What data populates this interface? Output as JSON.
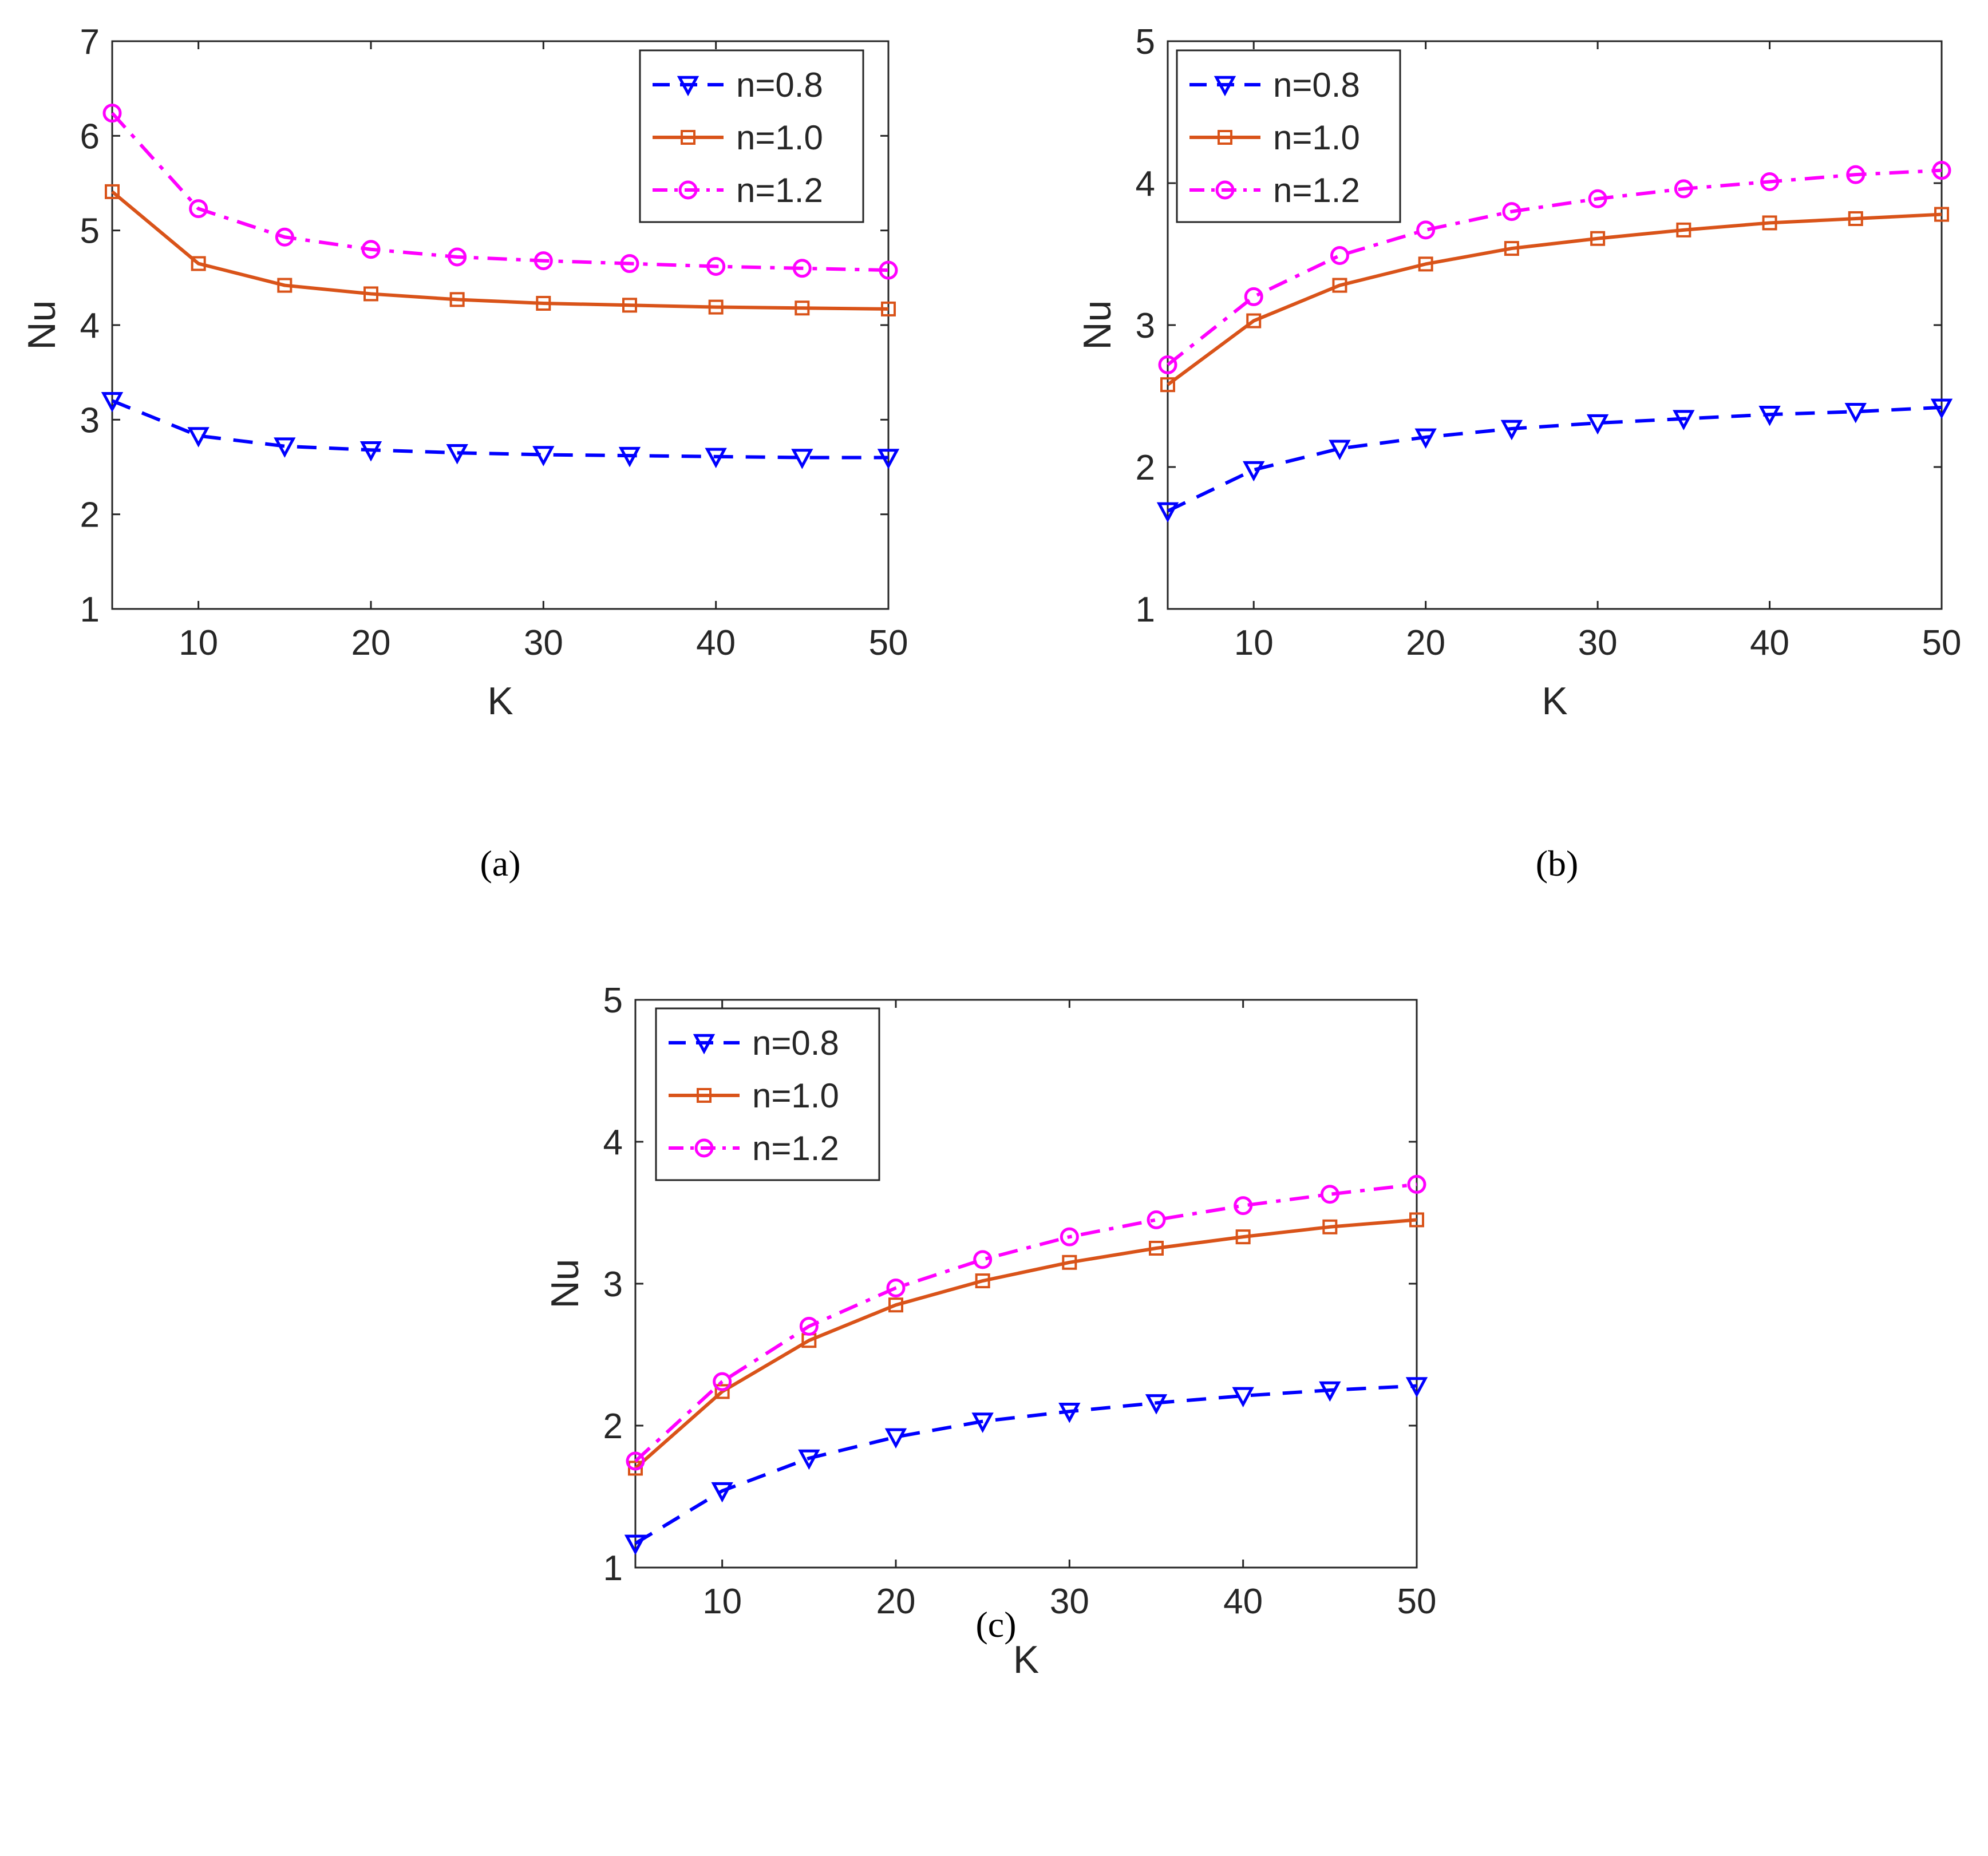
{
  "chart_data": [
    {
      "type": "line",
      "panel": "a",
      "caption": "(a)",
      "xlabel": "K",
      "ylabel": "Nu",
      "xlim": [
        5,
        50
      ],
      "ylim": [
        1,
        7
      ],
      "xticks": [
        10,
        20,
        30,
        40,
        50
      ],
      "yticks": [
        1,
        2,
        3,
        4,
        5,
        6,
        7
      ],
      "legend_position": "top-right",
      "x": [
        5,
        10,
        15,
        20,
        25,
        30,
        35,
        40,
        45,
        50
      ],
      "series": [
        {
          "name": "n=0.8",
          "color": "#0000FF",
          "style": "dashed",
          "marker": "triangle-down",
          "values": [
            3.2,
            2.83,
            2.72,
            2.68,
            2.65,
            2.63,
            2.62,
            2.61,
            2.6,
            2.6
          ]
        },
        {
          "name": "n=1.0",
          "color": "#D95319",
          "style": "solid",
          "marker": "square",
          "values": [
            5.41,
            4.65,
            4.42,
            4.33,
            4.27,
            4.23,
            4.21,
            4.19,
            4.18,
            4.17
          ]
        },
        {
          "name": "n=1.2",
          "color": "#FF00FF",
          "style": "dashdot",
          "marker": "circle",
          "values": [
            6.24,
            5.23,
            4.93,
            4.8,
            4.72,
            4.68,
            4.65,
            4.62,
            4.6,
            4.58
          ]
        }
      ]
    },
    {
      "type": "line",
      "panel": "b",
      "caption": "(b)",
      "xlabel": "K",
      "ylabel": "Nu",
      "xlim": [
        5,
        50
      ],
      "ylim": [
        1,
        5
      ],
      "xticks": [
        10,
        20,
        30,
        40,
        50
      ],
      "yticks": [
        1,
        2,
        3,
        4,
        5
      ],
      "legend_position": "top-left",
      "x": [
        5,
        10,
        15,
        20,
        25,
        30,
        35,
        40,
        45,
        50
      ],
      "series": [
        {
          "name": "n=0.8",
          "color": "#0000FF",
          "style": "dashed",
          "marker": "triangle-down",
          "values": [
            1.69,
            1.98,
            2.13,
            2.21,
            2.27,
            2.31,
            2.34,
            2.37,
            2.39,
            2.42
          ]
        },
        {
          "name": "n=1.0",
          "color": "#D95319",
          "style": "solid",
          "marker": "square",
          "values": [
            2.58,
            3.03,
            3.28,
            3.43,
            3.54,
            3.61,
            3.67,
            3.72,
            3.75,
            3.78
          ]
        },
        {
          "name": "n=1.2",
          "color": "#FF00FF",
          "style": "dashdot",
          "marker": "circle",
          "values": [
            2.72,
            3.2,
            3.49,
            3.67,
            3.8,
            3.89,
            3.96,
            4.01,
            4.06,
            4.09
          ]
        }
      ]
    },
    {
      "type": "line",
      "panel": "c",
      "caption": "(c)",
      "xlabel": "K",
      "ylabel": "Nu",
      "xlim": [
        5,
        50
      ],
      "ylim": [
        1,
        5
      ],
      "xticks": [
        10,
        20,
        30,
        40,
        50
      ],
      "yticks": [
        1,
        2,
        3,
        4,
        5
      ],
      "legend_position": "top-left",
      "x": [
        5,
        10,
        15,
        20,
        25,
        30,
        35,
        40,
        45,
        50
      ],
      "series": [
        {
          "name": "n=0.8",
          "color": "#0000FF",
          "style": "dashed",
          "marker": "triangle-down",
          "values": [
            1.17,
            1.54,
            1.77,
            1.92,
            2.03,
            2.1,
            2.16,
            2.21,
            2.25,
            2.28
          ]
        },
        {
          "name": "n=1.0",
          "color": "#D95319",
          "style": "solid",
          "marker": "square",
          "values": [
            1.7,
            2.24,
            2.6,
            2.85,
            3.02,
            3.15,
            3.25,
            3.33,
            3.4,
            3.45
          ]
        },
        {
          "name": "n=1.2",
          "color": "#FF00FF",
          "style": "dashdot",
          "marker": "circle",
          "values": [
            1.75,
            2.31,
            2.7,
            2.97,
            3.17,
            3.33,
            3.45,
            3.55,
            3.63,
            3.7
          ]
        }
      ]
    }
  ]
}
